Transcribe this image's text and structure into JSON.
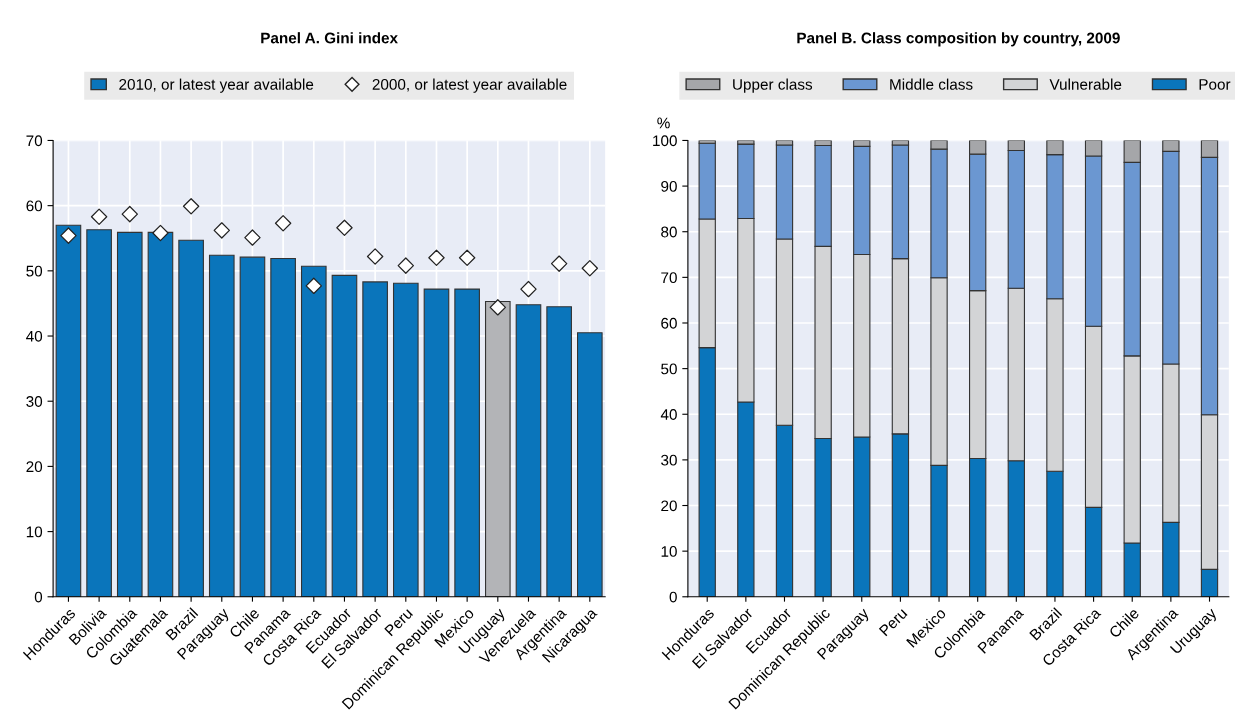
{
  "chart_data": [
    {
      "type": "bar",
      "title": "Panel A. Gini index",
      "categories": [
        "Honduras",
        "Bolivia",
        "Colombia",
        "Guatemala",
        "Brazil",
        "Paraguay",
        "Chile",
        "Panama",
        "Costa Rica",
        "Ecuador",
        "El Salvador",
        "Peru",
        "Dominican Republic",
        "Mexico",
        "Uruguay",
        "Venezuela",
        "Argentina",
        "Nicaragua"
      ],
      "series": [
        {
          "name": "2010, or latest year available",
          "type": "bar",
          "color": "#0a75bb",
          "colors": [
            "#0a75bb",
            "#0a75bb",
            "#0a75bb",
            "#0a75bb",
            "#0a75bb",
            "#0a75bb",
            "#0a75bb",
            "#0a75bb",
            "#0a75bb",
            "#0a75bb",
            "#0a75bb",
            "#0a75bb",
            "#0a75bb",
            "#0a75bb",
            "#b3b4b7",
            "#0a75bb",
            "#0a75bb",
            "#0a75bb"
          ],
          "values": [
            57.0,
            56.3,
            55.9,
            55.9,
            54.7,
            52.4,
            52.1,
            51.9,
            50.7,
            49.3,
            48.3,
            48.1,
            47.2,
            47.2,
            45.3,
            44.8,
            44.5,
            40.5
          ]
        },
        {
          "name": "2000, or latest year available",
          "type": "scatter",
          "marker": "diamond",
          "color": "#ffffff",
          "x": [
            "Honduras",
            "Bolivia",
            "Colombia",
            "Guatemala",
            "Brazil",
            "Paraguay",
            "Chile",
            "Panama",
            "Costa Rica",
            "Ecuador",
            "El Salvador",
            "Peru",
            "Dominican Republic",
            "Mexico",
            "Uruguay",
            "Venezuela",
            "Argentina",
            "Nicaragua"
          ],
          "values": [
            55.4,
            58.3,
            58.7,
            55.8,
            59.9,
            56.2,
            55.1,
            57.3,
            47.7,
            56.6,
            52.2,
            50.8,
            52.0,
            52.0,
            44.4,
            47.2,
            51.1,
            50.4
          ]
        }
      ],
      "ylim": [
        0,
        70
      ],
      "yticks": [
        0,
        10,
        20,
        30,
        40,
        50,
        60,
        70
      ],
      "grid": true,
      "legend": "top"
    },
    {
      "type": "bar",
      "title": "Panel B. Class composition by country, 2009",
      "ylabel": "%",
      "stacked": true,
      "categories": [
        "Honduras",
        "El Salvador",
        "Ecuador",
        "Dominican Republic",
        "Paraguay",
        "Peru",
        "Mexico",
        "Colombia",
        "Panama",
        "Brazil",
        "Costa Rica",
        "Chile",
        "Argentina",
        "Uruguay"
      ],
      "series": [
        {
          "name": "Poor",
          "color": "#0a75bb",
          "values": [
            54.6,
            42.7,
            37.6,
            34.7,
            35.0,
            35.7,
            28.8,
            30.3,
            29.8,
            27.5,
            19.6,
            11.8,
            16.3,
            6.0
          ]
        },
        {
          "name": "Vulnerable",
          "color": "#d3d4d6",
          "values": [
            28.2,
            40.2,
            40.8,
            42.1,
            40.0,
            38.4,
            41.1,
            36.8,
            37.8,
            37.8,
            39.7,
            41.0,
            34.7,
            33.9
          ]
        },
        {
          "name": "Middle class",
          "color": "#6b97d1",
          "values": [
            16.6,
            16.3,
            20.6,
            22.1,
            23.7,
            24.9,
            28.2,
            29.9,
            30.2,
            31.6,
            37.3,
            42.4,
            46.6,
            56.4
          ]
        },
        {
          "name": "Upper class",
          "color": "#a5a6a9",
          "values": [
            0.6,
            0.8,
            1.0,
            1.1,
            1.3,
            1.0,
            1.9,
            3.0,
            2.2,
            3.1,
            3.4,
            4.8,
            2.4,
            3.7
          ]
        }
      ],
      "ylim": [
        0,
        100
      ],
      "yticks": [
        0,
        10,
        20,
        30,
        40,
        50,
        60,
        70,
        80,
        90,
        100
      ],
      "grid": true,
      "legend": "top"
    }
  ]
}
